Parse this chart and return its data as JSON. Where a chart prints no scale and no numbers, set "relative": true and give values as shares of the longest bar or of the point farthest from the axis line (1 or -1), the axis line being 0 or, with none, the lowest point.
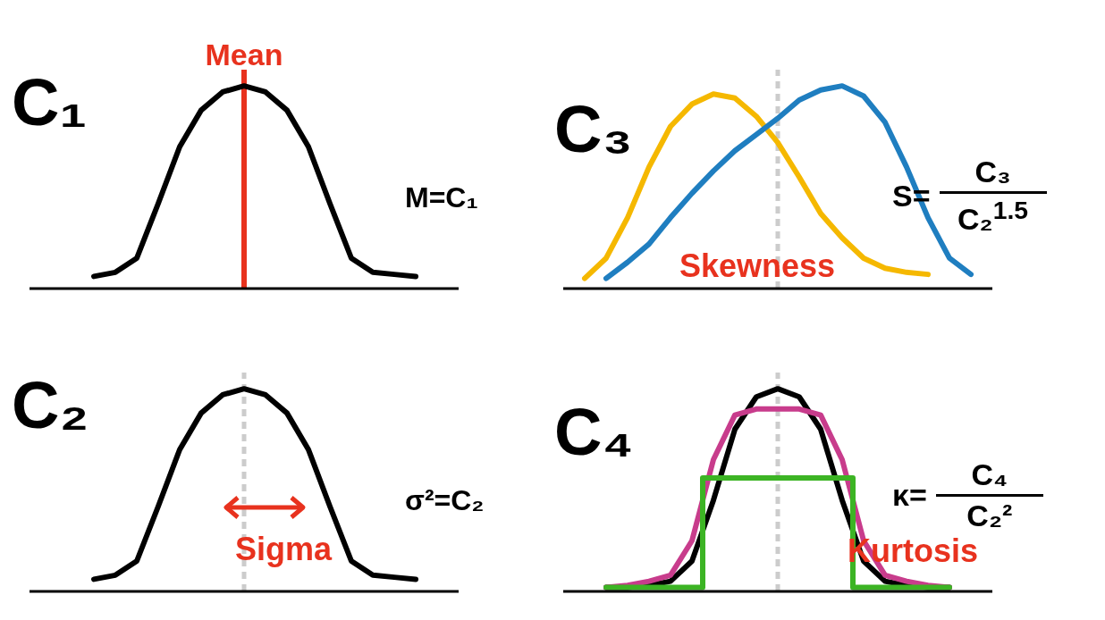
{
  "chart_data": [
    {
      "type": "line",
      "title": "C₁",
      "relative": true,
      "categories": [
        null,
        null,
        null,
        null,
        null,
        null,
        null,
        null,
        null,
        null,
        null,
        null,
        null,
        null,
        null,
        null,
        null,
        null,
        null,
        null,
        null
      ],
      "series": [
        {
          "color": "#000000",
          "values": [
            null,
            null,
            null,
            0.06,
            0.08,
            0.15,
            0.42,
            0.7,
            0.88,
            0.97,
            1,
            0.97,
            0.88,
            0.7,
            0.42,
            0.15,
            0.08,
            0.07,
            0.06,
            null,
            null
          ]
        }
      ],
      "ref_lines": [
        {
          "axis": "x",
          "label": "Mean",
          "color": "#e8321e",
          "line_style": "solid"
        }
      ],
      "annotations": [
        "M=C₁"
      ]
    },
    {
      "type": "line",
      "title": "C₃",
      "relative": true,
      "categories": [
        null,
        null,
        null,
        null,
        null,
        null,
        null,
        null,
        null,
        null,
        null,
        null,
        null,
        null,
        null,
        null,
        null,
        null,
        null,
        null,
        null
      ],
      "series": [
        {
          "color": "#f5b800",
          "values": [
            null,
            0.05,
            0.15,
            0.35,
            0.6,
            0.8,
            0.91,
            0.96,
            0.94,
            0.85,
            0.72,
            0.55,
            0.37,
            0.25,
            0.15,
            0.1,
            0.08,
            0.07,
            null,
            null,
            null
          ]
        },
        {
          "color": "#1f7ec0",
          "values": [
            null,
            null,
            0.05,
            0.13,
            0.22,
            0.35,
            0.47,
            0.58,
            0.68,
            0.76,
            0.84,
            0.93,
            0.98,
            1,
            0.95,
            0.82,
            0.6,
            0.35,
            0.15,
            0.07,
            null
          ]
        }
      ],
      "ref_lines": [
        {
          "axis": "x",
          "color": "#cccccc",
          "line_style": "dashed"
        }
      ],
      "annotations": [
        "Skewness",
        "S=",
        "C₃",
        "C₂$^{1.5}$"
      ]
    },
    {
      "type": "line",
      "title": "C₂",
      "relative": true,
      "categories": [
        null,
        null,
        null,
        null,
        null,
        null,
        null,
        null,
        null,
        null,
        null,
        null,
        null,
        null,
        null,
        null,
        null,
        null,
        null,
        null,
        null
      ],
      "series": [
        {
          "color": "#000000",
          "values": [
            null,
            null,
            null,
            0.06,
            0.08,
            0.15,
            0.42,
            0.7,
            0.88,
            0.97,
            1,
            0.97,
            0.88,
            0.7,
            0.42,
            0.15,
            0.08,
            0.07,
            0.06,
            null,
            null
          ]
        }
      ],
      "ref_lines": [
        {
          "axis": "x",
          "color": "#cccccc",
          "line_style": "dashed"
        }
      ],
      "annotations": [
        "Sigma",
        "σ²=C₂"
      ]
    },
    {
      "type": "line",
      "title": "C₄",
      "relative": true,
      "categories": [
        null,
        null,
        null,
        null,
        null,
        null,
        null,
        null,
        null,
        null,
        null,
        null,
        null,
        null,
        null,
        null,
        null,
        null,
        null,
        null,
        null
      ],
      "series": [
        {
          "color": "#000000",
          "values": [
            null,
            null,
            0.02,
            0.02,
            0.03,
            0.05,
            0.15,
            0.45,
            0.8,
            0.96,
            1,
            0.96,
            0.8,
            0.45,
            0.15,
            0.05,
            0.03,
            0.02,
            0.02,
            null,
            null
          ]
        },
        {
          "color": "#c83c8c",
          "values": [
            null,
            null,
            0.02,
            0.03,
            0.05,
            0.08,
            0.25,
            0.65,
            0.87,
            0.9,
            0.9,
            0.9,
            0.87,
            0.65,
            0.25,
            0.08,
            0.05,
            0.03,
            0.02,
            null,
            null
          ]
        },
        {
          "type": "step",
          "color": "#3cb424",
          "values": [
            null,
            null,
            0.02,
            0.02,
            0.02,
            0.02,
            0.02,
            0.56,
            0.56,
            0.56,
            0.56,
            0.56,
            0.56,
            0.56,
            0.02,
            0.02,
            0.02,
            0.02,
            0.02,
            null,
            null
          ]
        }
      ],
      "ref_lines": [
        {
          "axis": "x",
          "color": "#cccccc",
          "line_style": "dashed"
        }
      ],
      "annotations": [
        "Kurtosis",
        "κ=",
        "C₄",
        "C₂²"
      ]
    }
  ]
}
